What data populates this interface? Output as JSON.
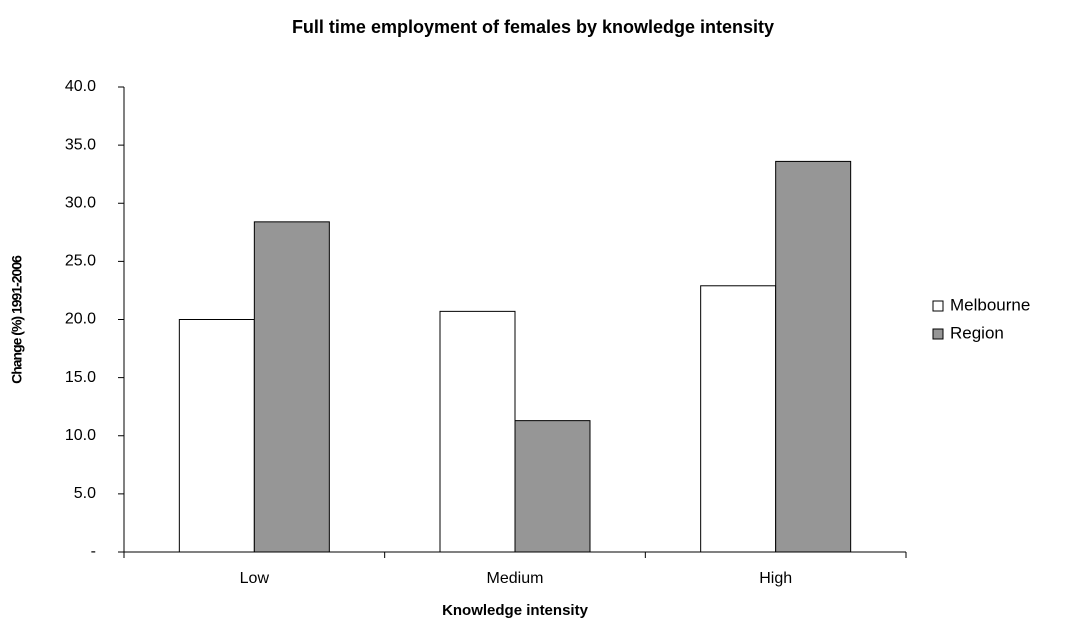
{
  "chart_data": {
    "type": "bar",
    "title": "Full time employment of females by knowledge intensity",
    "xlabel": "Knowledge intensity",
    "ylabel": "Change (%) 1991-2006",
    "categories": [
      "Low",
      "Medium",
      "High"
    ],
    "series": [
      {
        "name": "Melbourne",
        "color": "#ffffff",
        "values": [
          20.0,
          20.7,
          22.9
        ]
      },
      {
        "name": "Region",
        "color": "#969696",
        "values": [
          28.4,
          11.3,
          33.6
        ]
      }
    ],
    "ylim": [
      0,
      40
    ],
    "yticks": [
      {
        "value": 0,
        "label": "-"
      },
      {
        "value": 5,
        "label": "5.0"
      },
      {
        "value": 10,
        "label": "10.0"
      },
      {
        "value": 15,
        "label": "15.0"
      },
      {
        "value": 20,
        "label": "20.0"
      },
      {
        "value": 25,
        "label": "25.0"
      },
      {
        "value": 30,
        "label": "30.0"
      },
      {
        "value": 35,
        "label": "35.0"
      },
      {
        "value": 40,
        "label": "40.0"
      }
    ],
    "grid": false,
    "legend": "right"
  }
}
